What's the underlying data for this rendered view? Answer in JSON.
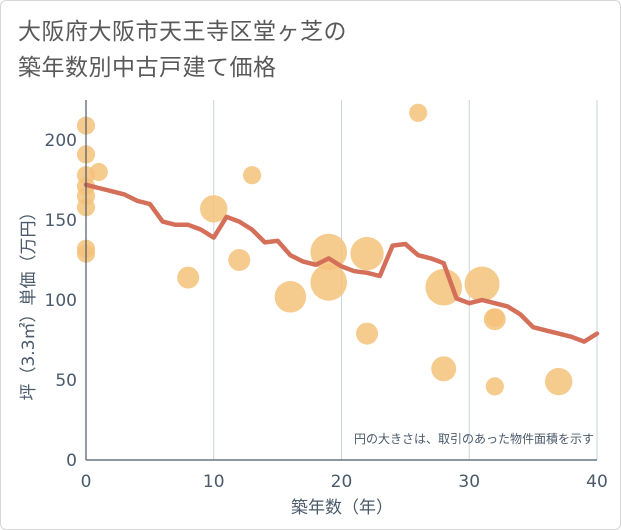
{
  "title_line1": "大阪府大阪市天王寺区堂ヶ芝の",
  "title_line2": "築年数別中古戸建て価格",
  "colors": {
    "bubble": "#f5c27a",
    "line": "#d4705a",
    "grid": "#c8d3dc",
    "axis": "#4a5a6a"
  },
  "chart_data": {
    "type": "scatter",
    "title": "大阪府大阪市天王寺区堂ヶ芝の築年数別中古戸建て価格",
    "xlabel": "築年数（年）",
    "ylabel": "坪（3.3㎡）単価（万円）",
    "xlim": [
      0,
      40
    ],
    "ylim": [
      0,
      225
    ],
    "xticks": [
      0,
      10,
      20,
      30,
      40
    ],
    "yticks": [
      0,
      50,
      100,
      150,
      200
    ],
    "grid": "vertical",
    "note": "円の大きさは、取引のあった物件面積を示す",
    "bubbles": [
      {
        "x": 0,
        "y": 209,
        "s": 1
      },
      {
        "x": 0,
        "y": 191,
        "s": 1
      },
      {
        "x": 0,
        "y": 178,
        "s": 1
      },
      {
        "x": 0,
        "y": 171,
        "s": 1
      },
      {
        "x": 0,
        "y": 165,
        "s": 1
      },
      {
        "x": 0,
        "y": 158,
        "s": 1
      },
      {
        "x": 0,
        "y": 132,
        "s": 1
      },
      {
        "x": 0,
        "y": 129,
        "s": 1
      },
      {
        "x": 1,
        "y": 180,
        "s": 1
      },
      {
        "x": 8,
        "y": 114,
        "s": 2
      },
      {
        "x": 10,
        "y": 157,
        "s": 4
      },
      {
        "x": 12,
        "y": 125,
        "s": 2
      },
      {
        "x": 13,
        "y": 178,
        "s": 1
      },
      {
        "x": 16,
        "y": 102,
        "s": 6
      },
      {
        "x": 19,
        "y": 130,
        "s": 9
      },
      {
        "x": 19,
        "y": 111,
        "s": 9
      },
      {
        "x": 22,
        "y": 129,
        "s": 7
      },
      {
        "x": 22,
        "y": 79,
        "s": 2
      },
      {
        "x": 26,
        "y": 217,
        "s": 1
      },
      {
        "x": 28,
        "y": 108,
        "s": 9
      },
      {
        "x": 28,
        "y": 57,
        "s": 3
      },
      {
        "x": 31,
        "y": 110,
        "s": 8
      },
      {
        "x": 32,
        "y": 88,
        "s": 2
      },
      {
        "x": 32,
        "y": 89,
        "s": 1
      },
      {
        "x": 32,
        "y": 46,
        "s": 1
      },
      {
        "x": 37,
        "y": 49,
        "s": 4
      }
    ],
    "series": [
      {
        "x": [
          0,
          1,
          2,
          3,
          4,
          5,
          6,
          7,
          8,
          9,
          10,
          11,
          12,
          13,
          14,
          15,
          16,
          17,
          18,
          19,
          20,
          21,
          22,
          23,
          24,
          25,
          26,
          27,
          28,
          29,
          30,
          31,
          32,
          33,
          34,
          35,
          36,
          37,
          38,
          39,
          40
        ],
        "values": [
          172,
          170,
          168,
          166,
          162,
          160,
          149,
          147,
          147,
          144,
          139,
          152,
          149,
          144,
          136,
          137,
          128,
          124,
          122,
          126,
          121,
          118,
          117,
          115,
          134,
          135,
          128,
          126,
          123,
          101,
          98,
          100,
          98,
          96,
          91,
          83,
          81,
          79,
          77,
          74,
          79
        ]
      }
    ]
  }
}
